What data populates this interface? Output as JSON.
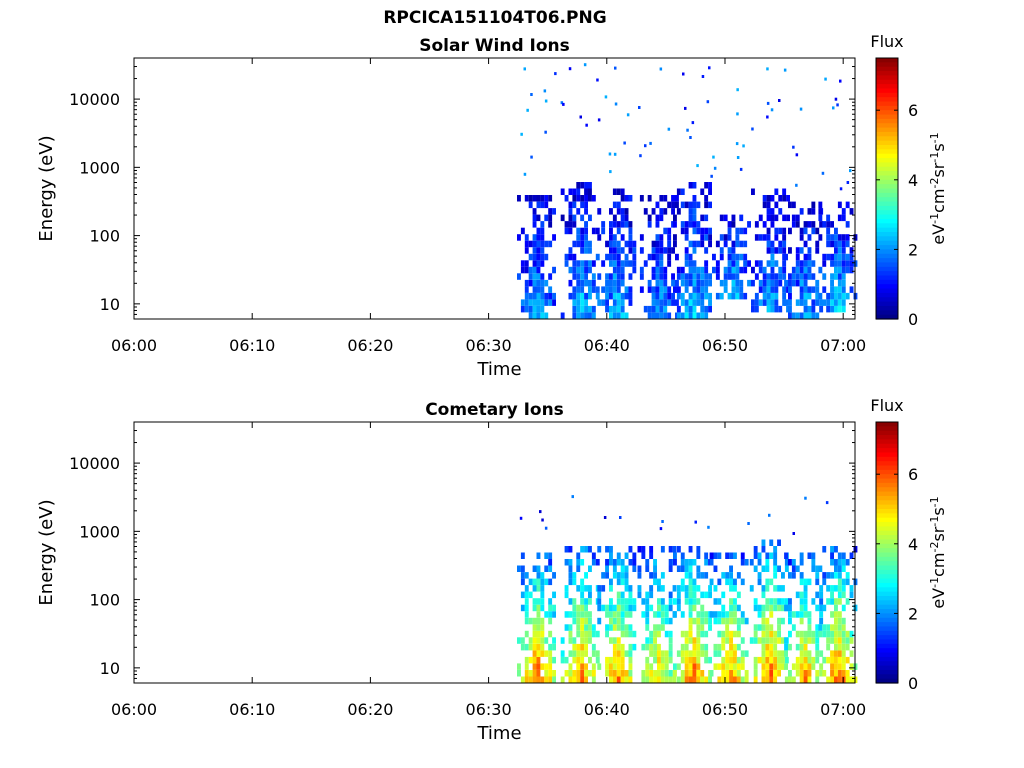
{
  "main_title": "RPCICA151104T06.PNG",
  "colors": {
    "colormap": [
      "#00007f",
      "#0000ff",
      "#0080ff",
      "#00ffff",
      "#80ff80",
      "#ffff00",
      "#ff8000",
      "#ff0000",
      "#7f0000"
    ],
    "axis": "#000000",
    "background": "#ffffff"
  },
  "chart_data": [
    {
      "type": "heatmap",
      "title": "Solar Wind Ions",
      "xlabel": "Time",
      "ylabel": "Energy (eV)",
      "x_ticks": [
        "06:00",
        "06:10",
        "06:20",
        "06:30",
        "06:40",
        "06:50",
        "07:00"
      ],
      "x_range_minutes": [
        0,
        61
      ],
      "y_scale": "log",
      "y_ticks": [
        "10",
        "100",
        "1000",
        "10000"
      ],
      "y_range": [
        6,
        40000
      ],
      "colorbar": {
        "label": "Flux",
        "units": "eV-1cm-2sr-1s-1",
        "ticks": [
          "0",
          "2",
          "4",
          "6"
        ],
        "range": [
          0,
          7.5
        ]
      },
      "bursts": [
        {
          "t": 34.0,
          "emin": 6,
          "emax": 400,
          "peak": 2.2
        },
        {
          "t": 37.7,
          "emin": 6,
          "emax": 600,
          "peak": 2.4
        },
        {
          "t": 40.8,
          "emin": 6,
          "emax": 500,
          "peak": 2.4
        },
        {
          "t": 44.4,
          "emin": 6,
          "emax": 400,
          "peak": 2.0
        },
        {
          "t": 47.2,
          "emin": 6,
          "emax": 600,
          "peak": 2.5
        },
        {
          "t": 50.5,
          "emin": 12,
          "emax": 200,
          "peak": 2.4
        },
        {
          "t": 53.8,
          "emin": 8,
          "emax": 450,
          "peak": 2.2
        },
        {
          "t": 56.6,
          "emin": 6,
          "emax": 300,
          "peak": 2.3
        },
        {
          "t": 59.5,
          "emin": 8,
          "emax": 300,
          "peak": 2.4
        }
      ],
      "scatter_energy_range": [
        500,
        35000
      ],
      "scatter_level": 1.5
    },
    {
      "type": "heatmap",
      "title": "Cometary Ions",
      "xlabel": "Time",
      "ylabel": "Energy (eV)",
      "x_ticks": [
        "06:00",
        "06:10",
        "06:20",
        "06:30",
        "06:40",
        "06:50",
        "07:00"
      ],
      "x_range_minutes": [
        0,
        61
      ],
      "y_scale": "log",
      "y_ticks": [
        "10",
        "100",
        "1000",
        "10000"
      ],
      "y_range": [
        6,
        40000
      ],
      "colorbar": {
        "label": "Flux",
        "units": "eV-1cm-2sr-1s-1",
        "ticks": [
          "0",
          "2",
          "4",
          "6"
        ],
        "range": [
          0,
          7.5
        ]
      },
      "bursts": [
        {
          "t": 34.0,
          "emin": 6,
          "emax": 500,
          "peak": 6.0
        },
        {
          "t": 37.7,
          "emin": 6,
          "emax": 600,
          "peak": 5.8
        },
        {
          "t": 40.8,
          "emin": 6,
          "emax": 600,
          "peak": 5.7
        },
        {
          "t": 44.2,
          "emin": 6,
          "emax": 600,
          "peak": 5.2
        },
        {
          "t": 47.2,
          "emin": 6,
          "emax": 600,
          "peak": 6.0
        },
        {
          "t": 50.3,
          "emin": 6,
          "emax": 500,
          "peak": 5.8
        },
        {
          "t": 53.7,
          "emin": 6,
          "emax": 700,
          "peak": 6.0
        },
        {
          "t": 56.6,
          "emin": 6,
          "emax": 500,
          "peak": 5.6
        },
        {
          "t": 59.5,
          "emin": 6,
          "emax": 600,
          "peak": 6.0
        }
      ],
      "scatter_energy_range": [
        900,
        3500
      ],
      "scatter_level": 1.2
    }
  ]
}
